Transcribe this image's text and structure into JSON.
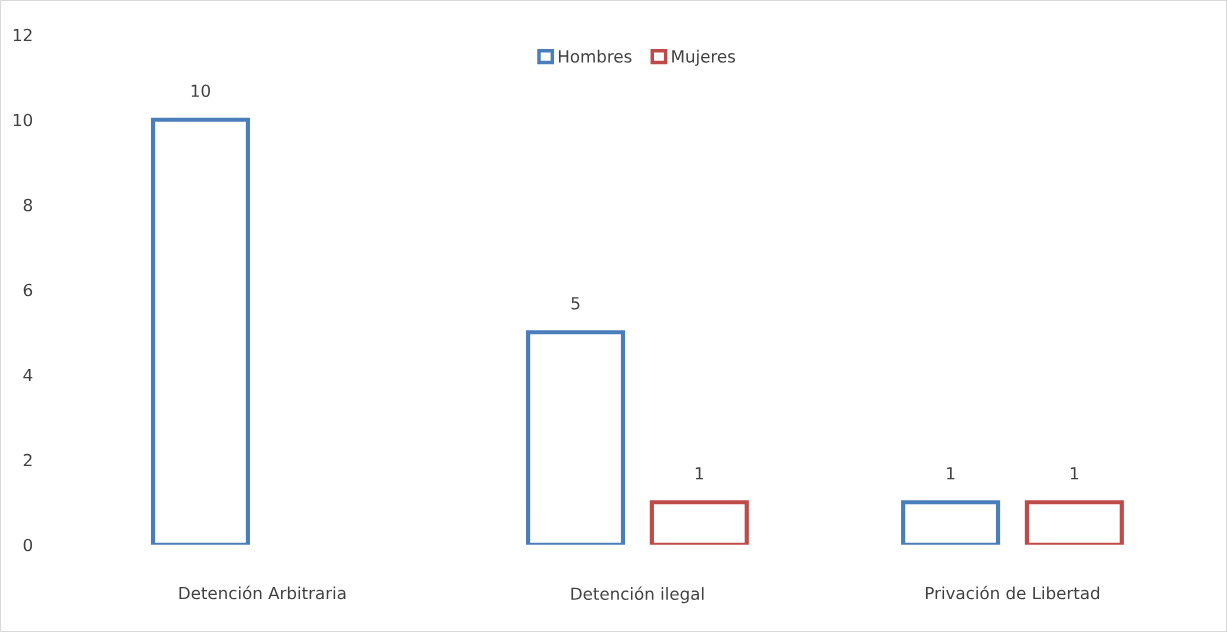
{
  "chart_data": {
    "type": "bar",
    "categories": [
      "Detención Arbitraria",
      "Detención ilegal",
      "Privación de Libertad"
    ],
    "series": [
      {
        "name": "Hombres",
        "color": "#4a7ebb",
        "values": [
          10,
          5,
          1
        ]
      },
      {
        "name": "Mujeres",
        "color": "#be4b48",
        "values": [
          null,
          1,
          1
        ]
      }
    ],
    "ylim": [
      0,
      12
    ],
    "yticks": [
      0,
      2,
      4,
      6,
      8,
      10,
      12
    ],
    "grid": false,
    "legend": "top",
    "data_labels": true
  }
}
